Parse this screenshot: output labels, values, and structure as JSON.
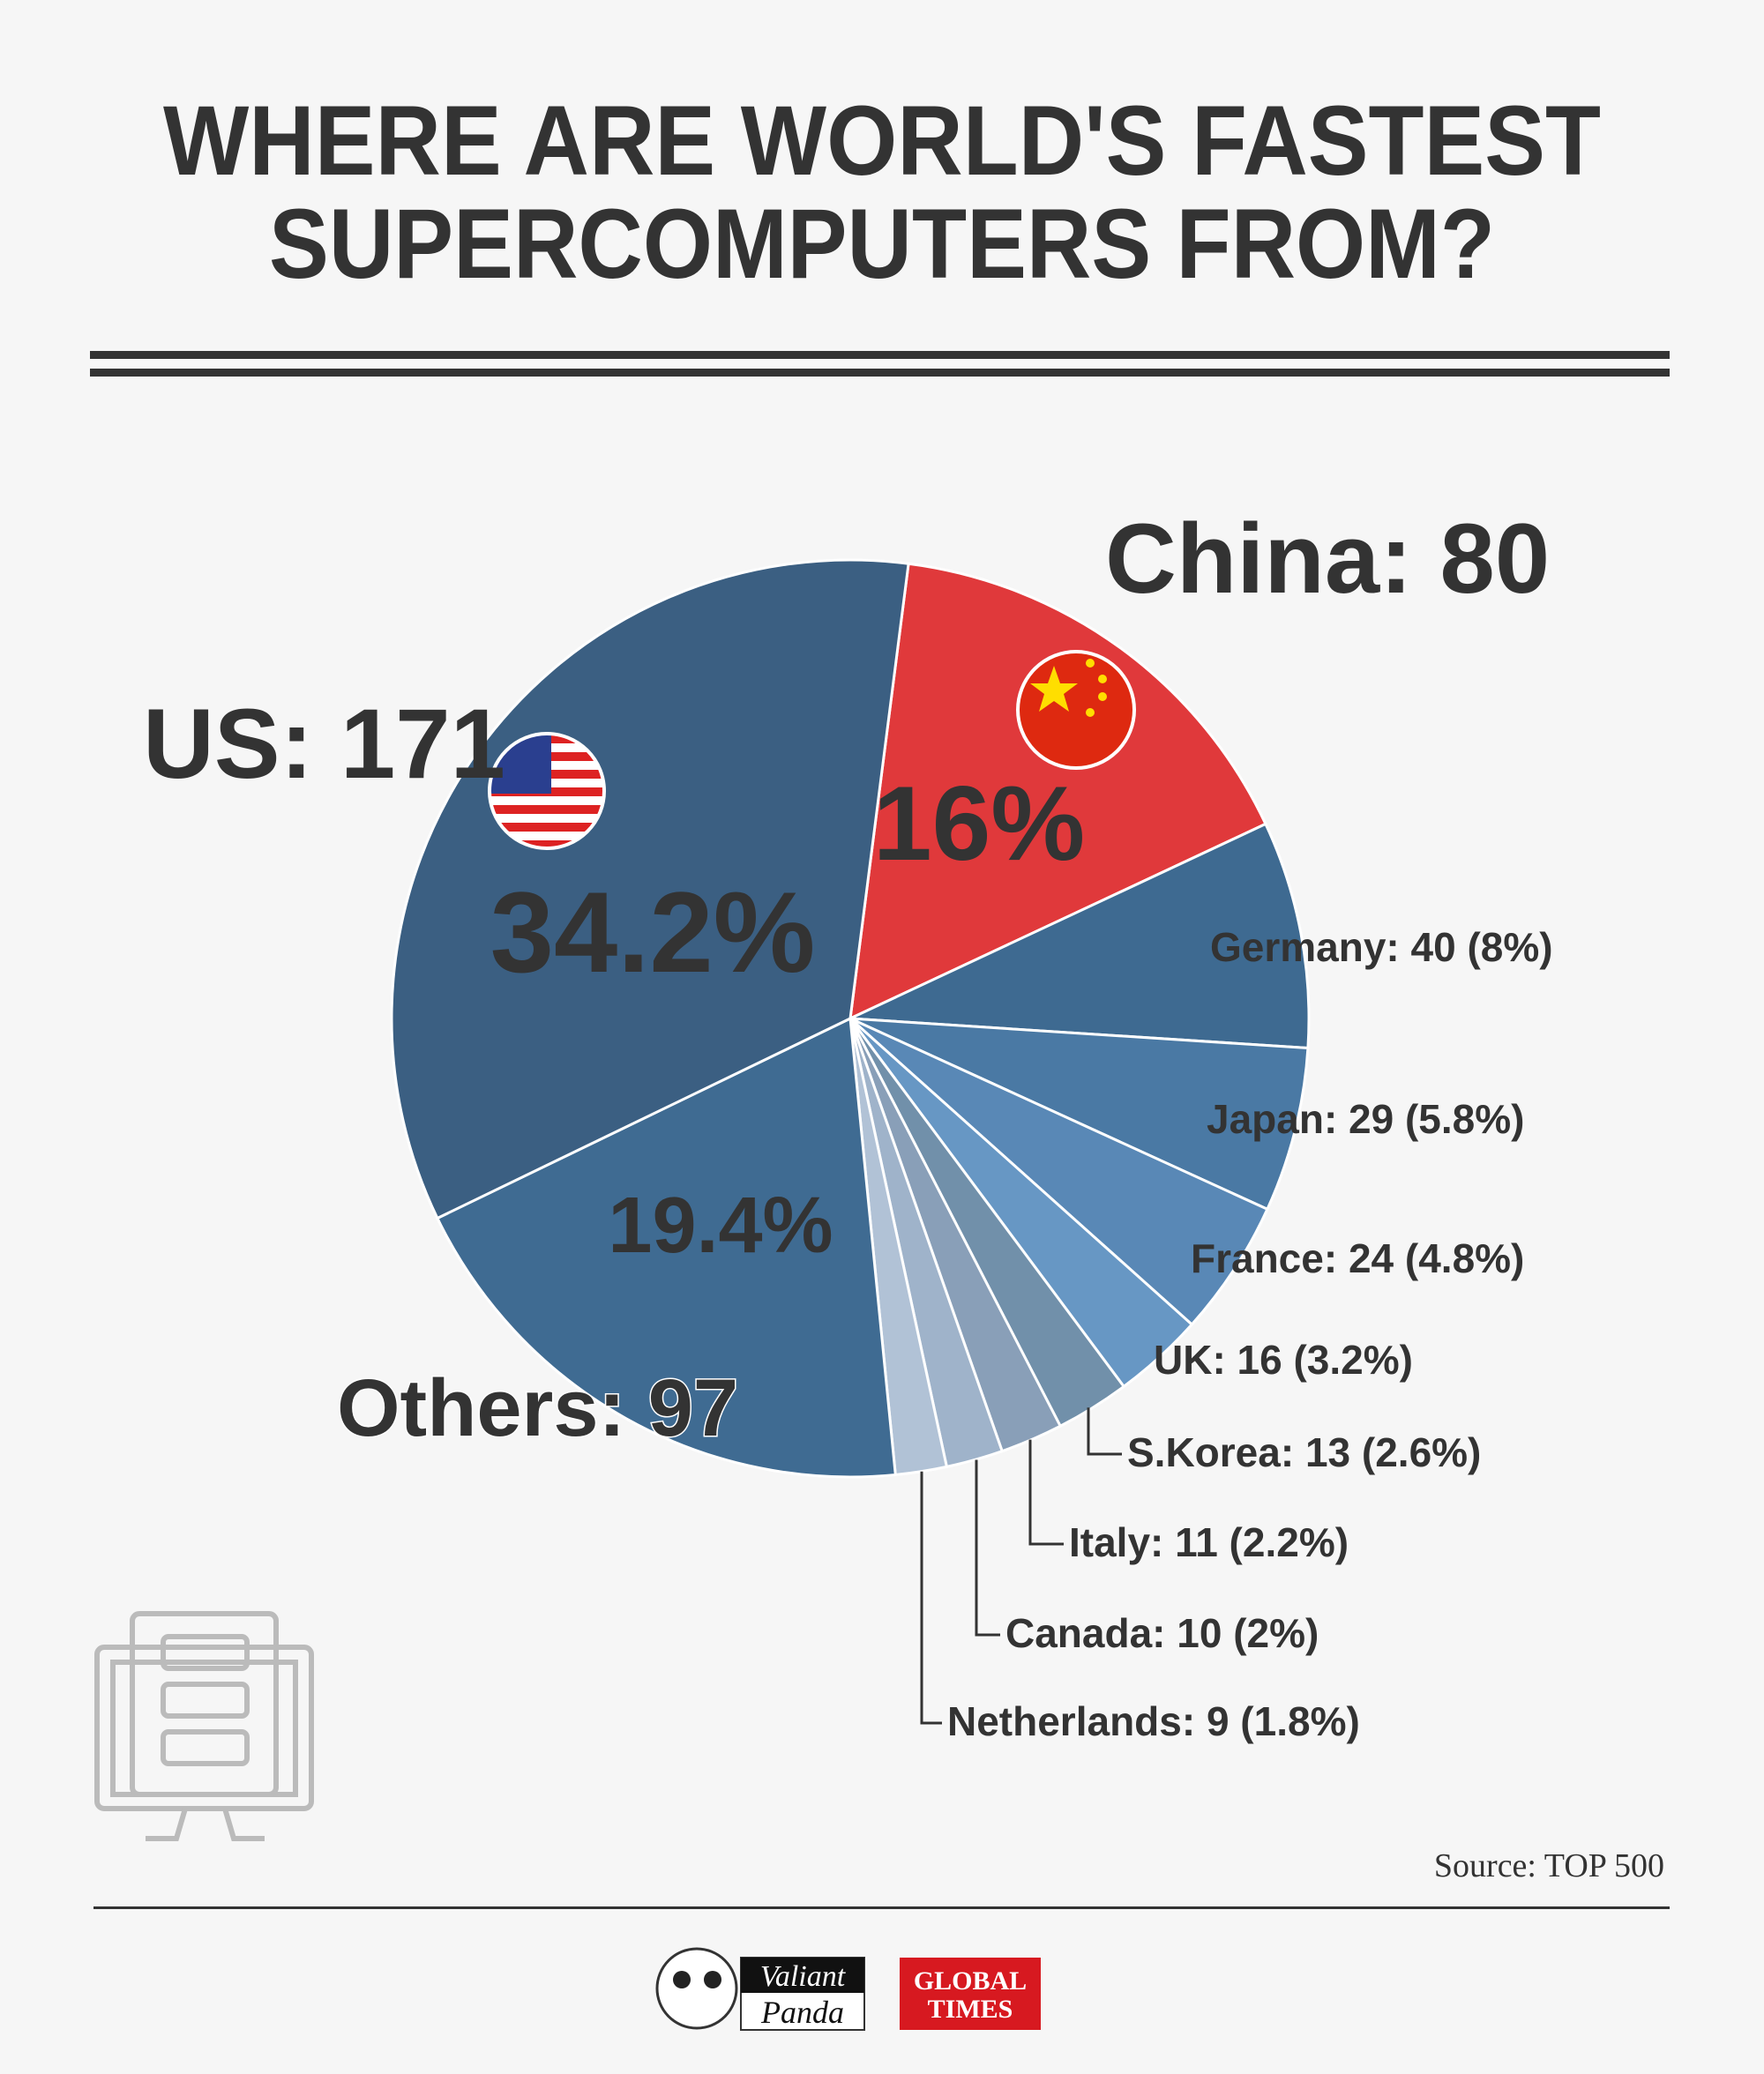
{
  "chart_data": {
    "type": "pie",
    "title": [
      "WHERE ARE WORLD'S FASTEST",
      "SUPERCOMPUTERS FROM?"
    ],
    "values": [
      80,
      40,
      29,
      24,
      16,
      13,
      11,
      10,
      9,
      97,
      171
    ],
    "value_labels": [
      "China: 80",
      "Germany: 40 (8%)",
      "Japan: 29 (5.8%)",
      "France: 24 (4.8%)",
      "UK: 16 (3.2%)",
      "S.Korea: 13 (2.6%)",
      "Italy: 11 (2.2%)",
      "Canada: 10 (2%)",
      "Netherlands: 9 (1.8%)",
      "Others: 97",
      "US: 171"
    ],
    "percent_labels": [
      "16%",
      null,
      null,
      null,
      null,
      null,
      null,
      null,
      null,
      "19.4%",
      "34.2%"
    ],
    "colors": [
      "#e0393b",
      "#3e6a91",
      "#4a79a4",
      "#5988b6",
      "#6797c4",
      "#7190aa",
      "#899fb8",
      "#9fb3ca",
      "#b1c2d6",
      "#3f6b92",
      "#3b5f82"
    ],
    "source": "Source: TOP 500",
    "logos": [
      "Valiant",
      "Panda",
      "GLOBAL",
      "TIMES"
    ]
  }
}
